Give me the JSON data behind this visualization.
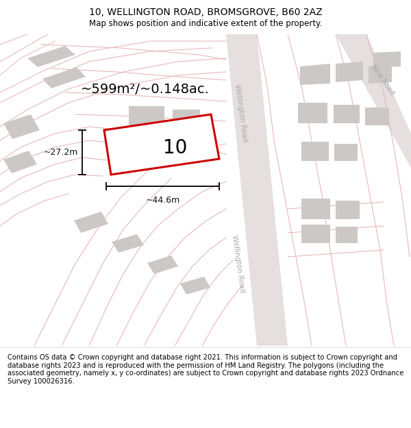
{
  "title": "10, WELLINGTON ROAD, BROMSGROVE, B60 2AZ",
  "subtitle": "Map shows position and indicative extent of the property.",
  "footer": "Contains OS data © Crown copyright and database right 2021. This information is subject to Crown copyright and database rights 2023 and is reproduced with the permission of HM Land Registry. The polygons (including the associated geometry, namely x, y co-ordinates) are subject to Crown copyright and database rights 2023 Ordnance Survey 100026316.",
  "area_label": "~599m²/~0.148ac.",
  "width_label": "~44.6m",
  "height_label": "~27.2m",
  "number_label": "10",
  "map_bg": "#f7f3f3",
  "plot_outline_color": "#cc0000",
  "building_fill": "#ccc8c6",
  "road_fill": "#e5dfdf",
  "road_line_color": "#e8b8b8",
  "dim_line_color": "#111111",
  "road_label_color": "#aaaaaa",
  "title_fontsize": 10,
  "subtitle_fontsize": 8.5,
  "footer_fontsize": 7.2,
  "area_fontsize": 14,
  "number_fontsize": 20,
  "dim_fontsize": 9
}
